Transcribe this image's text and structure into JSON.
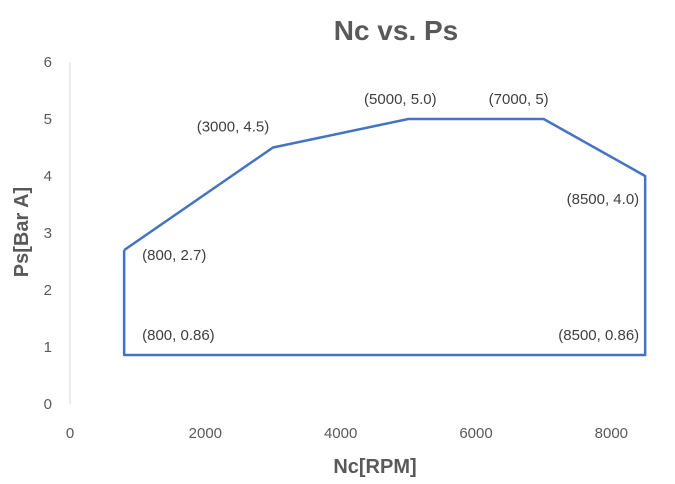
{
  "chart_data": {
    "type": "line",
    "title": "Nc vs. Ps",
    "xlabel": "Nc[RPM]",
    "ylabel": "Ps[Bar A]",
    "xlim": [
      0,
      9000
    ],
    "ylim": [
      0,
      6
    ],
    "xticks": [
      0,
      2000,
      4000,
      6000,
      8000
    ],
    "yticks": [
      0,
      1,
      2,
      3,
      4,
      5,
      6
    ],
    "grid": false,
    "legend": "none",
    "series": [
      {
        "color": "#4472C4",
        "points": [
          {
            "x": 800,
            "y": 2.7
          },
          {
            "x": 3000,
            "y": 4.5
          },
          {
            "x": 5000,
            "y": 5.0
          },
          {
            "x": 7000,
            "y": 5
          },
          {
            "x": 8500,
            "y": 4.0
          },
          {
            "x": 8500,
            "y": 0.86
          },
          {
            "x": 800,
            "y": 0.86
          },
          {
            "x": 800,
            "y": 2.7
          }
        ]
      }
    ],
    "data_labels": [
      {
        "text": "(800, 2.7)",
        "x": 800,
        "y": 2.7
      },
      {
        "text": "(3000, 4.5)",
        "x": 3000,
        "y": 4.5
      },
      {
        "text": "(5000, 5.0)",
        "x": 5000,
        "y": 5.0
      },
      {
        "text": "(7000, 5)",
        "x": 7000,
        "y": 5
      },
      {
        "text": "(8500, 4.0)",
        "x": 8500,
        "y": 4.0
      },
      {
        "text": "(8500, 0.86)",
        "x": 8500,
        "y": 0.86
      },
      {
        "text": "(800, 0.86)",
        "x": 800,
        "y": 0.86
      }
    ]
  }
}
